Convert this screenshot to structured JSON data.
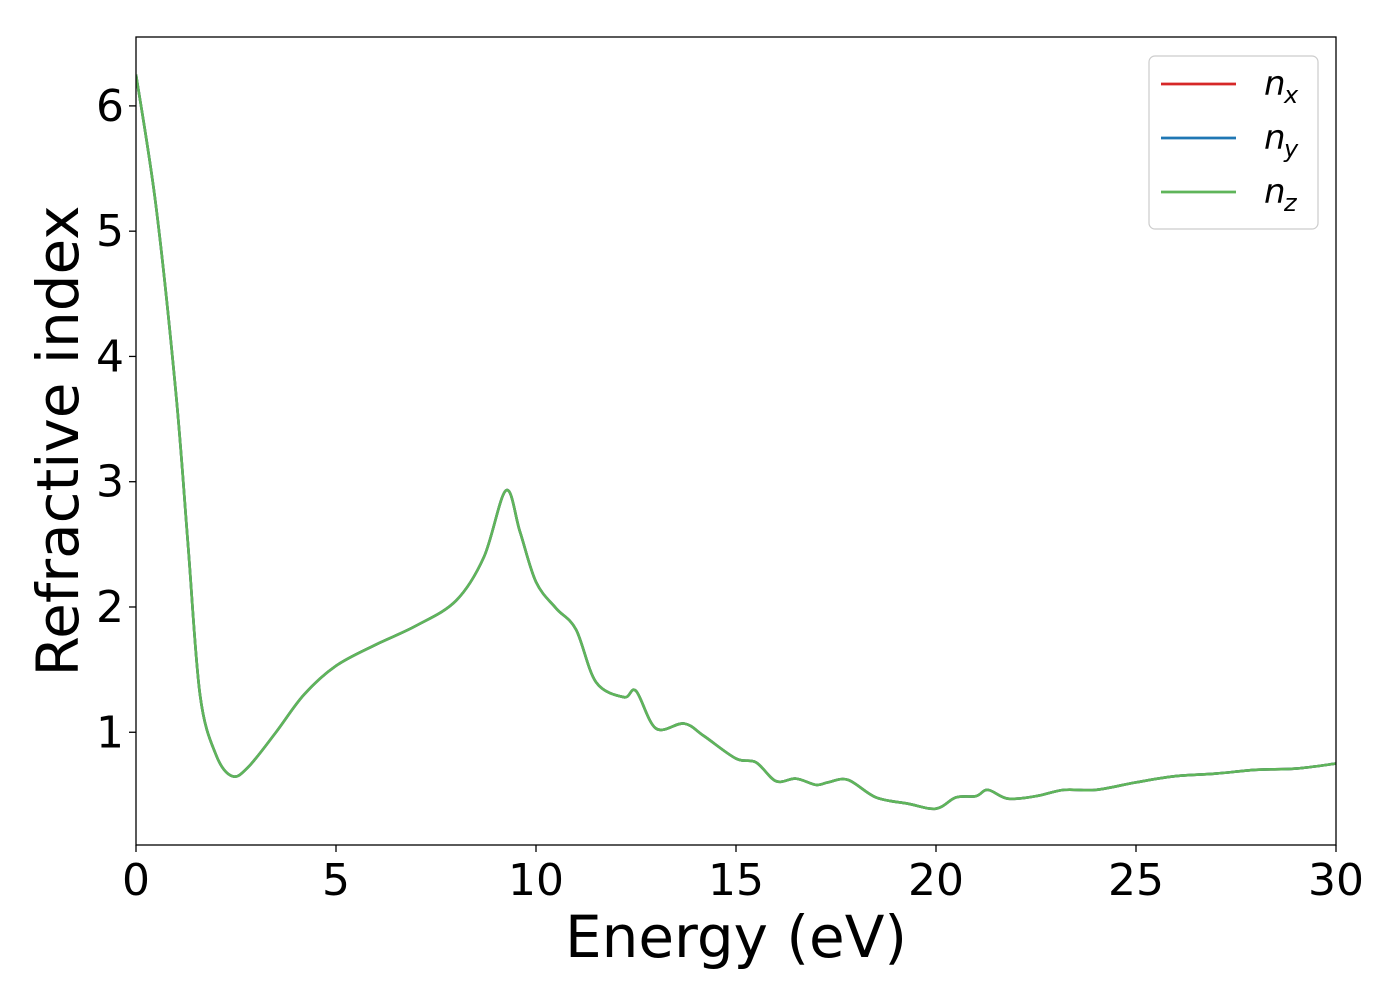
{
  "chart_data": {
    "type": "line",
    "xlabel": "Energy (eV)",
    "ylabel": "Refractive index",
    "xlim": [
      0,
      30
    ],
    "ylim": [
      0.1,
      6.55
    ],
    "xticks": [
      0,
      5,
      10,
      15,
      20,
      25,
      30
    ],
    "yticks": [
      1,
      2,
      3,
      4,
      5,
      6
    ],
    "grid": false,
    "legend_position": "top-right",
    "series": [
      {
        "name": "n",
        "subscript": "x",
        "color": "#d62728",
        "x": [
          0,
          0.5,
          1.0,
          1.3,
          1.6,
          2.0,
          2.4,
          2.8,
          3.5,
          4.2,
          5.0,
          6.0,
          7.0,
          8.0,
          8.7,
          9.25,
          9.6,
          10.0,
          10.5,
          11.0,
          11.5,
          12.2,
          12.5,
          13.0,
          13.7,
          14.2,
          15.0,
          15.5,
          16.0,
          16.5,
          17.0,
          17.3,
          17.8,
          18.5,
          19.3,
          20.0,
          20.5,
          21.0,
          21.3,
          21.8,
          22.5,
          23.2,
          24.0,
          25.0,
          26.0,
          27.0,
          28.0,
          29.0,
          30.0
        ],
        "y": [
          6.25,
          5.2,
          3.7,
          2.5,
          1.3,
          0.82,
          0.65,
          0.72,
          1.0,
          1.3,
          1.53,
          1.7,
          1.85,
          2.05,
          2.4,
          2.93,
          2.6,
          2.2,
          1.99,
          1.82,
          1.4,
          1.28,
          1.33,
          1.03,
          1.07,
          0.97,
          0.79,
          0.76,
          0.61,
          0.63,
          0.58,
          0.6,
          0.62,
          0.48,
          0.43,
          0.39,
          0.48,
          0.49,
          0.54,
          0.47,
          0.49,
          0.54,
          0.54,
          0.6,
          0.65,
          0.67,
          0.7,
          0.71,
          0.75
        ]
      },
      {
        "name": "n",
        "subscript": "y",
        "color": "#1f77b4",
        "x": [
          0,
          0.5,
          1.0,
          1.3,
          1.6,
          2.0,
          2.4,
          2.8,
          3.5,
          4.2,
          5.0,
          6.0,
          7.0,
          8.0,
          8.7,
          9.25,
          9.6,
          10.0,
          10.5,
          11.0,
          11.5,
          12.2,
          12.5,
          13.0,
          13.7,
          14.2,
          15.0,
          15.5,
          16.0,
          16.5,
          17.0,
          17.3,
          17.8,
          18.5,
          19.3,
          20.0,
          20.5,
          21.0,
          21.3,
          21.8,
          22.5,
          23.2,
          24.0,
          25.0,
          26.0,
          27.0,
          28.0,
          29.0,
          30.0
        ],
        "y": [
          6.25,
          5.2,
          3.7,
          2.5,
          1.3,
          0.82,
          0.65,
          0.72,
          1.0,
          1.3,
          1.53,
          1.7,
          1.85,
          2.05,
          2.4,
          2.93,
          2.6,
          2.2,
          1.99,
          1.82,
          1.4,
          1.28,
          1.33,
          1.03,
          1.07,
          0.97,
          0.79,
          0.76,
          0.61,
          0.63,
          0.58,
          0.6,
          0.62,
          0.48,
          0.43,
          0.39,
          0.48,
          0.49,
          0.54,
          0.47,
          0.49,
          0.54,
          0.54,
          0.6,
          0.65,
          0.67,
          0.7,
          0.71,
          0.75
        ]
      },
      {
        "name": "n",
        "subscript": "z",
        "color": "#5fb55a",
        "x": [
          0,
          0.5,
          1.0,
          1.3,
          1.6,
          2.0,
          2.4,
          2.8,
          3.5,
          4.2,
          5.0,
          6.0,
          7.0,
          8.0,
          8.7,
          9.25,
          9.6,
          10.0,
          10.5,
          11.0,
          11.5,
          12.2,
          12.5,
          13.0,
          13.7,
          14.2,
          15.0,
          15.5,
          16.0,
          16.5,
          17.0,
          17.3,
          17.8,
          18.5,
          19.3,
          20.0,
          20.5,
          21.0,
          21.3,
          21.8,
          22.5,
          23.2,
          24.0,
          25.0,
          26.0,
          27.0,
          28.0,
          29.0,
          30.0
        ],
        "y": [
          6.25,
          5.2,
          3.7,
          2.5,
          1.3,
          0.82,
          0.65,
          0.72,
          1.0,
          1.3,
          1.53,
          1.7,
          1.85,
          2.05,
          2.4,
          2.93,
          2.6,
          2.2,
          1.99,
          1.82,
          1.4,
          1.28,
          1.33,
          1.03,
          1.07,
          0.97,
          0.79,
          0.76,
          0.61,
          0.63,
          0.58,
          0.6,
          0.62,
          0.48,
          0.43,
          0.39,
          0.48,
          0.49,
          0.54,
          0.47,
          0.49,
          0.54,
          0.54,
          0.6,
          0.65,
          0.67,
          0.7,
          0.71,
          0.75
        ]
      }
    ]
  }
}
